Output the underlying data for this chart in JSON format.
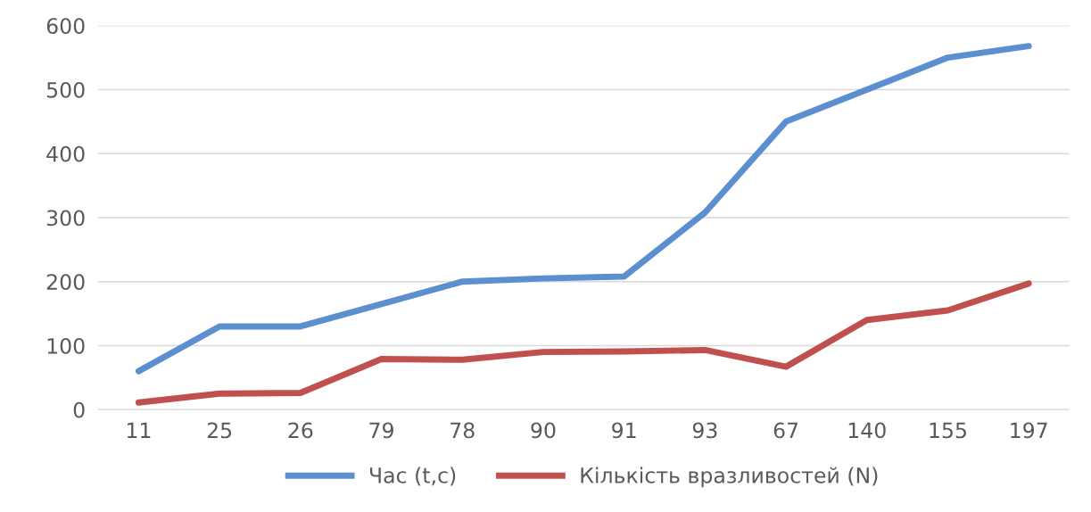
{
  "chart_data": {
    "type": "line",
    "categories": [
      "11",
      "25",
      "26",
      "79",
      "78",
      "90",
      "91",
      "93",
      "67",
      "140",
      "155",
      "197"
    ],
    "series": [
      {
        "name": "Час (t,c)",
        "color": "#5b8fcf",
        "values": [
          60,
          130,
          130,
          165,
          200,
          205,
          208,
          308,
          450,
          500,
          550,
          568
        ]
      },
      {
        "name": "Кількість вразливостей (N)",
        "color": "#c0504d",
        "values": [
          11,
          25,
          26,
          79,
          78,
          90,
          91,
          93,
          67,
          140,
          155,
          197
        ]
      }
    ],
    "ylim": [
      0,
      600
    ],
    "yticks": [
      0,
      100,
      200,
      300,
      400,
      500,
      600
    ],
    "grid": "y",
    "legend": "bottom",
    "marker": "none",
    "line_style": "solid"
  }
}
